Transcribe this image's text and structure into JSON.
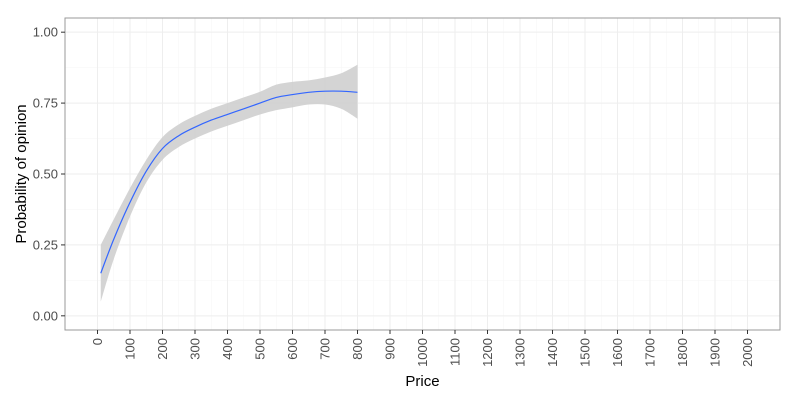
{
  "chart_data": {
    "type": "line",
    "title": "",
    "xlabel": "Price",
    "ylabel": "Probability of opinion",
    "xlim": [
      -100,
      2100
    ],
    "ylim": [
      -0.05,
      1.05
    ],
    "x_ticks": [
      0,
      100,
      200,
      300,
      400,
      500,
      600,
      700,
      800,
      900,
      1000,
      1100,
      1200,
      1300,
      1400,
      1500,
      1600,
      1700,
      1800,
      1900,
      2000
    ],
    "y_ticks": [
      0.0,
      0.25,
      0.5,
      0.75,
      1.0
    ],
    "y_tick_labels": [
      "0.00",
      "0.25",
      "0.50",
      "0.75",
      "1.00"
    ],
    "grid": true,
    "legend": "none",
    "series": [
      {
        "x": [
          10,
          50,
          100,
          150,
          200,
          250,
          300,
          350,
          400,
          450,
          500,
          550,
          600,
          650,
          700,
          750,
          800
        ],
        "y": [
          0.15,
          0.27,
          0.4,
          0.51,
          0.59,
          0.635,
          0.665,
          0.69,
          0.71,
          0.73,
          0.75,
          0.77,
          0.78,
          0.788,
          0.792,
          0.792,
          0.788
        ],
        "ci_lower": [
          0.05,
          0.2,
          0.35,
          0.47,
          0.55,
          0.595,
          0.625,
          0.65,
          0.67,
          0.69,
          0.71,
          0.725,
          0.735,
          0.745,
          0.745,
          0.73,
          0.695
        ],
        "ci_upper": [
          0.25,
          0.34,
          0.45,
          0.55,
          0.63,
          0.675,
          0.705,
          0.73,
          0.75,
          0.77,
          0.79,
          0.815,
          0.825,
          0.83,
          0.84,
          0.855,
          0.885
        ]
      }
    ],
    "colors": {
      "line": "#3366ff",
      "band": "#cccccc",
      "panel_border": "#999999",
      "grid_major": "#eeeeee",
      "grid_minor": "#f5f5f5"
    }
  }
}
